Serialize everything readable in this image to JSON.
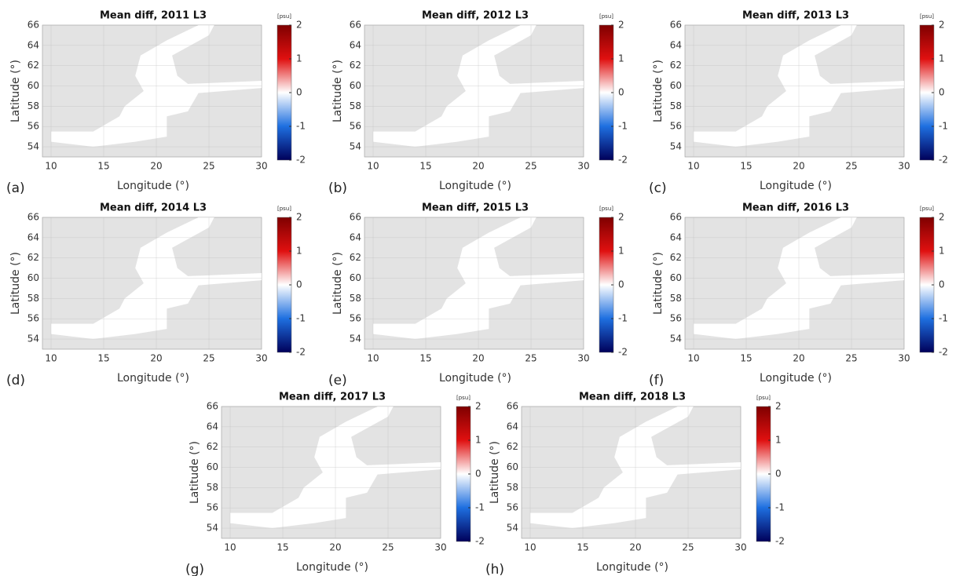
{
  "panels": [
    {
      "title": "Mean diff, 2011 L3",
      "label": "(a)",
      "xlabel": "Longitude (°)",
      "ylabel": "Latitude (°)",
      "xticks": [
        10,
        15,
        20,
        25,
        30
      ],
      "yticks": [
        54,
        56,
        58,
        60,
        62,
        64,
        66
      ],
      "colorbar_unit": "[psu]",
      "colorbar_ticks": [
        2,
        1,
        0,
        -1,
        -2
      ]
    },
    {
      "title": "Mean diff, 2012 L3",
      "label": "(b)",
      "xlabel": "Longitude (°)",
      "ylabel": "Latitude (°)",
      "xticks": [
        10,
        15,
        20,
        25,
        30
      ],
      "yticks": [
        54,
        56,
        58,
        60,
        62,
        64,
        66
      ],
      "colorbar_unit": "[psu]",
      "colorbar_ticks": [
        2,
        1,
        0,
        -1,
        -2
      ]
    },
    {
      "title": "Mean diff, 2013 L3",
      "label": "(c)",
      "xlabel": "Longitude (°)",
      "ylabel": "Latitude (°)",
      "xticks": [
        10,
        15,
        20,
        25,
        30
      ],
      "yticks": [
        54,
        56,
        58,
        60,
        62,
        64,
        66
      ],
      "colorbar_unit": "[psu]",
      "colorbar_ticks": [
        2,
        1,
        0,
        -1,
        -2
      ]
    },
    {
      "title": "Mean diff, 2014 L3",
      "label": "(d)",
      "xlabel": "Longitude (°)",
      "ylabel": "Latitude (°)",
      "xticks": [
        10,
        15,
        20,
        25,
        30
      ],
      "yticks": [
        54,
        56,
        58,
        60,
        62,
        64,
        66
      ],
      "colorbar_unit": "[psu]",
      "colorbar_ticks": [
        2,
        1,
        0,
        -1,
        -2
      ]
    },
    {
      "title": "Mean diff, 2015 L3",
      "label": "(e)",
      "xlabel": "Longitude (°)",
      "ylabel": "Latitude (°)",
      "xticks": [
        10,
        15,
        20,
        25,
        30
      ],
      "yticks": [
        54,
        56,
        58,
        60,
        62,
        64,
        66
      ],
      "colorbar_unit": "[psu]",
      "colorbar_ticks": [
        2,
        1,
        0,
        -1,
        -2
      ]
    },
    {
      "title": "Mean diff, 2016 L3",
      "label": "(f)",
      "xlabel": "Longitude (°)",
      "ylabel": "Latitude (°)",
      "xticks": [
        10,
        15,
        20,
        25,
        30
      ],
      "yticks": [
        54,
        56,
        58,
        60,
        62,
        64,
        66
      ],
      "colorbar_unit": "[psu]",
      "colorbar_ticks": [
        2,
        1,
        0,
        -1,
        -2
      ]
    },
    {
      "title": "Mean diff, 2017 L3",
      "label": "(g)",
      "xlabel": "Longitude (°)",
      "ylabel": "Latitude (°)",
      "xticks": [
        10,
        15,
        20,
        25,
        30
      ],
      "yticks": [
        54,
        56,
        58,
        60,
        62,
        64,
        66
      ],
      "colorbar_unit": "[psu]",
      "colorbar_ticks": [
        2,
        1,
        0,
        -1,
        -2
      ]
    },
    {
      "title": "Mean diff, 2018 L3",
      "label": "(h)",
      "xlabel": "Longitude (°)",
      "ylabel": "Latitude (°)",
      "xticks": [
        10,
        15,
        20,
        25,
        30
      ],
      "yticks": [
        54,
        56,
        58,
        60,
        62,
        64,
        66
      ],
      "colorbar_unit": "[psu]",
      "colorbar_ticks": [
        2,
        1,
        0,
        -1,
        -2
      ]
    }
  ]
}
